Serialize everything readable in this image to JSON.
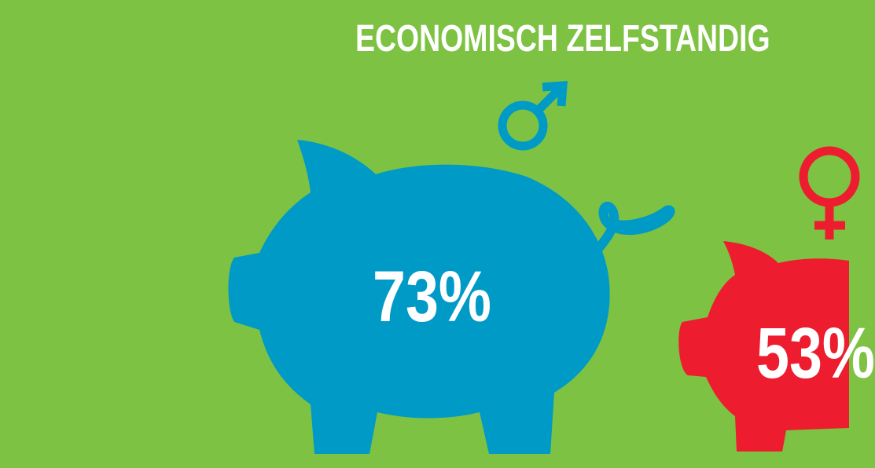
{
  "title": "ECONOMISCH ZELFSTANDIG",
  "colors": {
    "background": "#7dc242",
    "male": "#009ac7",
    "female": "#ed1c2e",
    "text": "#ffffff"
  },
  "groups": [
    {
      "gender": "male",
      "icon": "male-symbol-icon",
      "value_label": "73%",
      "value": 73
    },
    {
      "gender": "female",
      "icon": "female-symbol-icon",
      "value_label": "53%",
      "value": 53
    }
  ]
}
